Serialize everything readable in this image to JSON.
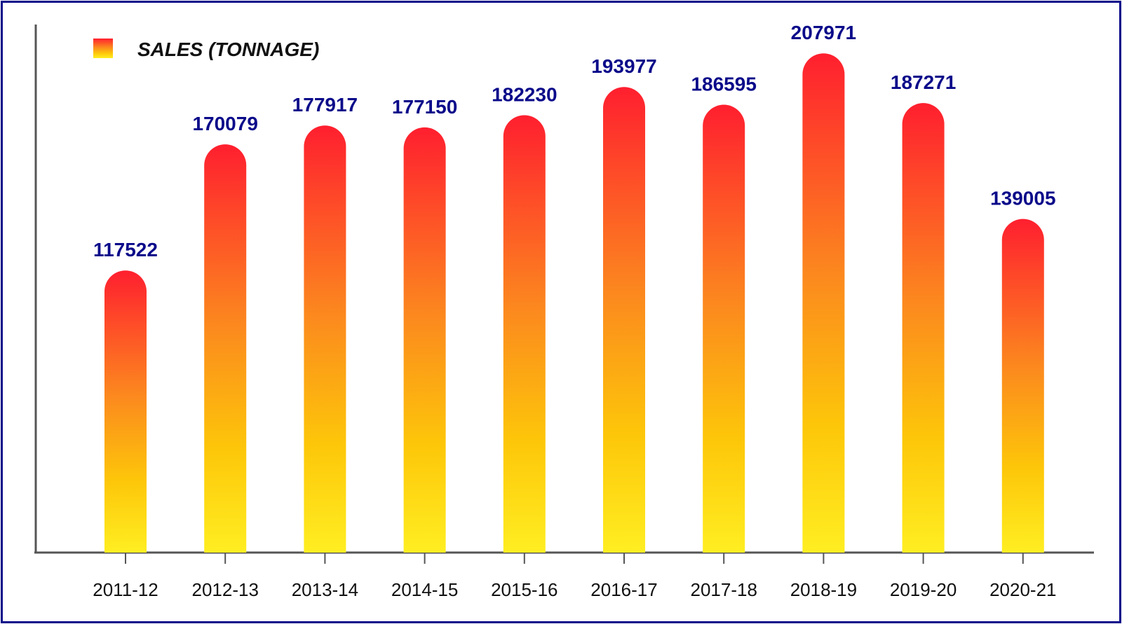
{
  "chart_data": {
    "type": "bar",
    "categories": [
      "2011-12",
      "2012-13",
      "2013-14",
      "2014-15",
      "2015-16",
      "2016-17",
      "2017-18",
      "2018-19",
      "2019-20",
      "2020-21"
    ],
    "series": [
      {
        "name": "SALES (TONNAGE)",
        "values": [
          117522,
          170079,
          177917,
          177150,
          182230,
          193977,
          186595,
          207971,
          187271,
          139005
        ]
      }
    ],
    "value_labels": [
      "117522",
      "170079",
      "177917",
      "177150",
      "182230",
      "193977",
      "186595",
      "207971",
      "187271",
      "139005"
    ],
    "title": "",
    "xlabel": "",
    "ylabel": "",
    "ylim": [
      0,
      220000
    ],
    "grid": false,
    "legend_position": "top-left",
    "colors": {
      "bar_top": "#ff1f2f",
      "bar_mid": "#fc8a1e",
      "bar_bottom": "#ffee22",
      "label": "#0a0a8a",
      "frame": "#0a0a8a",
      "axis": "#555555"
    }
  }
}
